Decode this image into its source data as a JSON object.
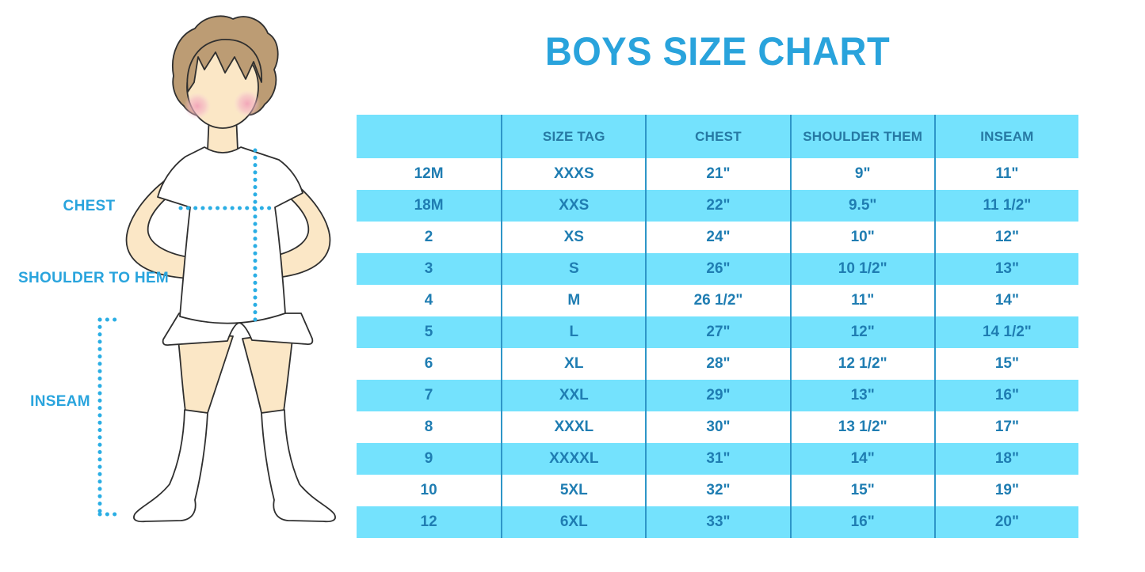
{
  "title": "BOYS SIZE CHART",
  "figure_labels": {
    "chest": "CHEST",
    "shoulder_to_hem": "SHOULDER TO HEM",
    "inseam": "INSEAM"
  },
  "colors": {
    "title_blue": "#29A3DC",
    "label_blue": "#29A4DD",
    "dotted_line": "#2BAEE4",
    "row_blue": "#74E2FD",
    "cell_text": "#1F7DB2",
    "header_text": "#2679A4",
    "column_divider": "#2E96C8",
    "skin": "#FBE7C6",
    "hair": "#BC9C74"
  },
  "chart_data": {
    "type": "table",
    "title": "BOYS SIZE CHART",
    "columns": [
      "",
      "SIZE TAG",
      "CHEST",
      "SHOULDER THEM",
      "INSEAM"
    ],
    "rows": [
      [
        "12M",
        "XXXS",
        "21\"",
        "9\"",
        "11\""
      ],
      [
        "18M",
        "XXS",
        "22\"",
        "9.5\"",
        "11 1/2\""
      ],
      [
        "2",
        "XS",
        "24\"",
        "10\"",
        "12\""
      ],
      [
        "3",
        "S",
        "26\"",
        "10 1/2\"",
        "13\""
      ],
      [
        "4",
        "M",
        "26 1/2\"",
        "11\"",
        "14\""
      ],
      [
        "5",
        "L",
        "27\"",
        "12\"",
        "14 1/2\""
      ],
      [
        "6",
        "XL",
        "28\"",
        "12 1/2\"",
        "15\""
      ],
      [
        "7",
        "XXL",
        "29\"",
        "13\"",
        "16\""
      ],
      [
        "8",
        "XXXL",
        "30\"",
        "13 1/2\"",
        "17\""
      ],
      [
        "9",
        "XXXXL",
        "31\"",
        "14\"",
        "18\""
      ],
      [
        "10",
        "5XL",
        "32\"",
        "15\"",
        "19\""
      ],
      [
        "12",
        "6XL",
        "33\"",
        "16\"",
        "20\""
      ]
    ],
    "layout": {
      "row_striping": "white/blue alternating starting white",
      "header_background": "#74E2FD",
      "grid": "vertical column dividers only"
    }
  }
}
